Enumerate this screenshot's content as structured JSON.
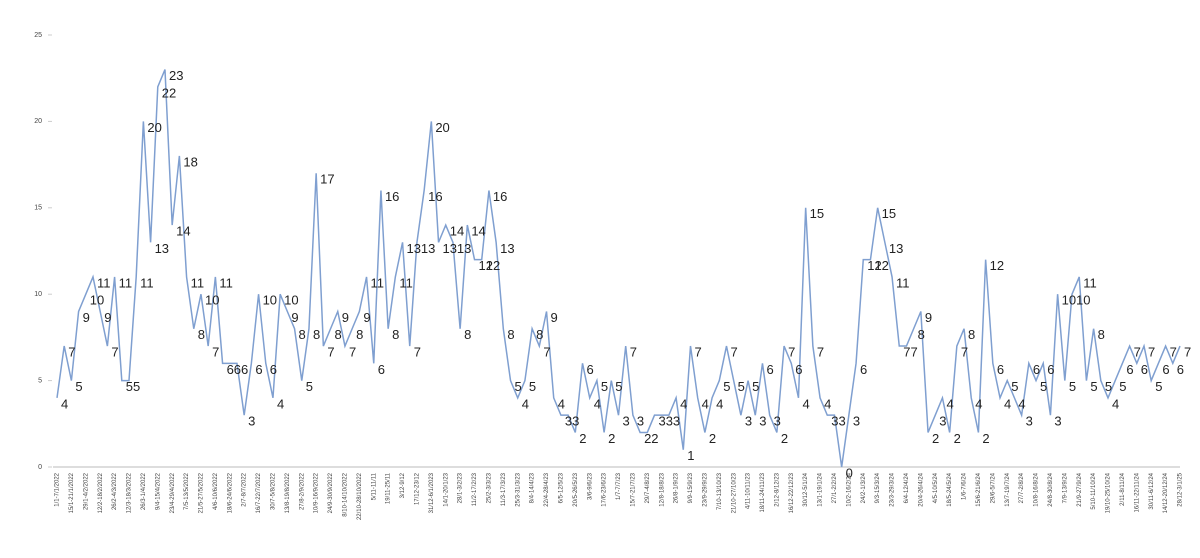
{
  "chart_data": {
    "type": "line",
    "color": "#7f9fd0",
    "grid": false,
    "ylim": [
      0,
      25
    ],
    "yticks": [
      0,
      5,
      10,
      15,
      20,
      25
    ],
    "categories": [
      "1/1-7/1/2022",
      null,
      "15/1-21/1/2022",
      null,
      "29/1-4/2/2022",
      null,
      "12/2-18/2/2022",
      null,
      "26/2-4/3/2022",
      null,
      "12/3-18/3/2022",
      null,
      "26/3-1/4/2022",
      null,
      "9/4-15/4/2022",
      null,
      "23/4-29/4/2022",
      null,
      "7/5-13/5/2022",
      null,
      "21/5-27/5/2022",
      null,
      "4/6-10/6/2022",
      null,
      "18/6-24/6/2022",
      null,
      "2/7-8/7/2022",
      null,
      "16/7-22/7/2022",
      null,
      "30/7-5/8/2022",
      null,
      "13/8-19/8/2022",
      null,
      "27/8-2/9/2022",
      null,
      "10/9-16/9/2022",
      null,
      "24/9-30/9/2022",
      null,
      "8/10-14/10/2022",
      null,
      "22/10-28/10/2022",
      null,
      "5/11-11/11",
      null,
      "19/11-25/11",
      null,
      "3/12-9/12",
      null,
      "17/12-23/12",
      null,
      "31/12-6/1/2023",
      null,
      "14/1-20/1/23",
      null,
      "28/1-3/2/23",
      null,
      "11/2-17/2/23",
      null,
      "25/2-3/3/23",
      null,
      "11/3-17/3/23",
      null,
      "25/3-31/3/23",
      null,
      "8/4-14/4/23",
      null,
      "22/4-28/4/23",
      null,
      "6/5-12/5/23",
      null,
      "20/5-26/5/23",
      null,
      "3/6-9/6/23",
      null,
      "17/6-23/6/23",
      null,
      "1/7-7/7/23",
      null,
      "15/7-21/7/23",
      null,
      "29/7-4/8/23",
      null,
      "12/8-18/8/23",
      null,
      "26/8-1/9/23",
      null,
      "9/9-15/9/23",
      null,
      "23/9-29/9/23",
      null,
      "7/10-13/10/23",
      null,
      "21/10-27/10/23",
      null,
      "4/11-10/11/23",
      null,
      "18/11-24/11/23",
      null,
      "2/12-8/12/23",
      null,
      "16/12-22/12/23",
      null,
      "30/12-5/1/24",
      null,
      "13/1-19/1/24",
      null,
      "27/1-2/2/24",
      null,
      "10/2-16/2/24",
      null,
      "24/2-1/3/24",
      null,
      "9/3-15/3/24",
      null,
      "23/3-29/3/24",
      null,
      "6/4-12/4/24",
      null,
      "20/4-26/4/24",
      null,
      "4/5-10/5/24",
      null,
      "18/5-24/5/24",
      null,
      "1/6-7/6/24",
      null,
      "15/6-21/6/24",
      null,
      "29/6-5/7/24",
      null,
      "13/7-19/7/24",
      null,
      "27/7-2/8/24",
      null,
      "10/8-16/8/24",
      null,
      "24/8-30/8/24",
      null,
      "7/9-13/9/24",
      null,
      "21/9-27/9/24",
      null,
      "5/10-11/10/24",
      null,
      "19/10-25/10/24",
      null,
      "2/11-8/11/24",
      null,
      "16/11-22/11/24",
      null,
      "30/11-6/12/24",
      null,
      "14/12-20/12/24",
      null,
      "28/12-3/1/25"
    ],
    "values": [
      4,
      7,
      5,
      9,
      10,
      11,
      9,
      7,
      11,
      5,
      5,
      11,
      20,
      13,
      22,
      23,
      14,
      18,
      11,
      8,
      10,
      7,
      11,
      6,
      6,
      6,
      3,
      6,
      10,
      6,
      4,
      10,
      9,
      8,
      5,
      8,
      17,
      7,
      8,
      9,
      7,
      8,
      9,
      11,
      6,
      16,
      8,
      11,
      13,
      7,
      13,
      16,
      20,
      13,
      14,
      13,
      8,
      14,
      12,
      12,
      16,
      13,
      8,
      5,
      4,
      5,
      8,
      7,
      9,
      4,
      3,
      3,
      2,
      6,
      4,
      5,
      2,
      5,
      3,
      7,
      3,
      2,
      2,
      3,
      3,
      3,
      4,
      1,
      7,
      4,
      2,
      4,
      5,
      7,
      5,
      3,
      5,
      3,
      6,
      3,
      2,
      7,
      6,
      4,
      15,
      7,
      4,
      3,
      3,
      0,
      3,
      6,
      12,
      12,
      15,
      13,
      11,
      7,
      7,
      8,
      9,
      2,
      3,
      4,
      2,
      7,
      8,
      4,
      2,
      12,
      6,
      4,
      5,
      4,
      3,
      6,
      5,
      6,
      3,
      10,
      5,
      10,
      11,
      5,
      8,
      5,
      4,
      5,
      6,
      7,
      6,
      7,
      5,
      6,
      7,
      6,
      7
    ]
  }
}
